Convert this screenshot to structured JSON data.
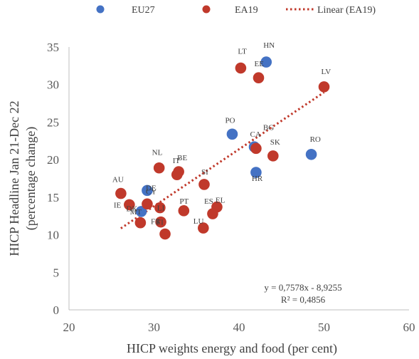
{
  "chart_data": {
    "type": "scatter",
    "xlabel": "HICP weights energy and food  (per cent)",
    "ylabel_lines": [
      "HICP Headline Jan 21-Dec 22",
      "(percentage change)"
    ],
    "xlim": [
      20,
      60
    ],
    "ylim": [
      0,
      35
    ],
    "x_ticks": [
      20,
      30,
      40,
      50,
      60
    ],
    "y_ticks": [
      0,
      5,
      10,
      15,
      20,
      25,
      30,
      35
    ],
    "grid": false,
    "legend_position": "top",
    "series": [
      {
        "name": "EU27",
        "color": "#4472C4",
        "points": [
          {
            "label": "HN",
            "x": 43.2,
            "y": 33.0
          },
          {
            "label": "PO",
            "x": 39.2,
            "y": 23.4
          },
          {
            "label": "CA",
            "x": 41.8,
            "y": 21.7
          },
          {
            "label": "RO",
            "x": 48.5,
            "y": 20.7
          },
          {
            "label": "HR",
            "x": 42.0,
            "y": 18.3
          },
          {
            "label": "DE",
            "x": 29.2,
            "y": 15.9
          },
          {
            "label": "MT",
            "x": 28.5,
            "y": 13.1
          }
        ]
      },
      {
        "name": "EA19",
        "color": "#C0392B",
        "points": [
          {
            "label": "LT",
            "x": 40.2,
            "y": 32.2
          },
          {
            "label": "EE",
            "x": 42.3,
            "y": 30.9
          },
          {
            "label": "LV",
            "x": 50.0,
            "y": 29.7
          },
          {
            "label": "BG",
            "x": 42.0,
            "y": 21.5
          },
          {
            "label": "SK",
            "x": 44.0,
            "y": 20.5
          },
          {
            "label": "NL",
            "x": 30.6,
            "y": 18.9
          },
          {
            "label": "BE",
            "x": 32.9,
            "y": 18.4
          },
          {
            "label": "IT",
            "x": 32.7,
            "y": 18.0
          },
          {
            "label": "SI",
            "x": 35.9,
            "y": 16.7
          },
          {
            "label": "AU",
            "x": 26.1,
            "y": 15.5
          },
          {
            "label": "CY",
            "x": 29.2,
            "y": 14.1
          },
          {
            "label": "IE",
            "x": 27.1,
            "y": 14.0
          },
          {
            "label": "EL",
            "x": 37.4,
            "y": 13.7
          },
          {
            "label": "LI",
            "x": 30.7,
            "y": 13.6
          },
          {
            "label": "PT",
            "x": 33.5,
            "y": 13.2
          },
          {
            "label": "ES",
            "x": 36.9,
            "y": 12.8
          },
          {
            "label": "FI",
            "x": 30.8,
            "y": 11.7
          },
          {
            "label": "DK",
            "x": 28.4,
            "y": 11.6
          },
          {
            "label": "LU",
            "x": 35.8,
            "y": 10.9
          },
          {
            "label": "FR",
            "x": 31.3,
            "y": 10.1
          }
        ]
      }
    ],
    "trendline": {
      "name": "Linear (EA19)",
      "color": "#C0392B",
      "slope": 0.7578,
      "intercept": -8.9255,
      "x_range": [
        26.1,
        50.0
      ],
      "equation": "y = 0,7578x - 8,9255",
      "r_squared": "R² = 0,4856"
    }
  }
}
